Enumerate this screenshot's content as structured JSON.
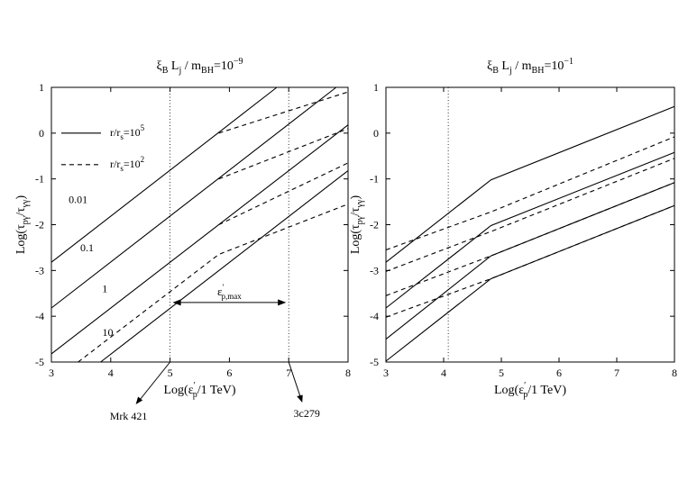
{
  "chart_data": [
    {
      "type": "line",
      "title": "ξ_B L_j / m_BH=10^-9",
      "title_parts": {
        "xi": "ξ",
        "xi_sub": "B",
        "L": "L",
        "L_sub": "j",
        "m": "/ m",
        "m_sub": "BH",
        "eq": "=10",
        "exp": "−9"
      },
      "xlabel": "Log(ε'_p/1 TeV)",
      "ylabel": "Log(τ_pγ/τ_γγ)",
      "xlim": [
        3,
        8
      ],
      "ylim": [
        -5,
        1
      ],
      "xticks": [
        "3",
        "4",
        "5",
        "6",
        "7",
        "8"
      ],
      "yticks": [
        "-5",
        "-4",
        "-3",
        "-2",
        "-1",
        "0",
        "1"
      ],
      "grid": false,
      "legend": {
        "placement": "top-left",
        "entries": [
          {
            "style": "solid",
            "label": "r/r_s=10^5",
            "base": "r/r",
            "sub": "s",
            "eq": "=10",
            "exp": "5"
          },
          {
            "style": "dashed",
            "label": "r/r_s=10^2",
            "base": "r/r",
            "sub": "s",
            "eq": "=10",
            "exp": "2"
          }
        ]
      },
      "series": [
        {
          "label_on_chart": "0.01",
          "style": "solid",
          "points": [
            [
              3,
              -2.82
            ],
            [
              6.8,
              1.0
            ]
          ]
        },
        {
          "label_on_chart": "0.1",
          "style": "solid",
          "points": [
            [
              3,
              -3.82
            ],
            [
              7.8,
              1.0
            ]
          ]
        },
        {
          "label_on_chart": "1",
          "style": "solid",
          "points": [
            [
              3,
              -4.82
            ],
            [
              8,
              0.18
            ]
          ]
        },
        {
          "label_on_chart": "10",
          "style": "solid",
          "points": [
            [
              3.83,
              -5.0
            ],
            [
              8,
              -0.82
            ]
          ]
        },
        {
          "style": "dashed",
          "points": [
            [
              5.82,
              0.0
            ],
            [
              8,
              0.9
            ]
          ]
        },
        {
          "style": "dashed",
          "points": [
            [
              5.82,
              -1.0
            ],
            [
              8,
              0.1
            ]
          ]
        },
        {
          "style": "dashed",
          "points": [
            [
              5.82,
              -2.0
            ],
            [
              8,
              -0.65
            ]
          ]
        },
        {
          "style": "dashed",
          "points": [
            [
              3.45,
              -5.0
            ],
            [
              5.82,
              -2.65
            ],
            [
              8,
              -1.55
            ]
          ]
        }
      ],
      "vlines": [
        5,
        7
      ],
      "annotations": {
        "range_arrow": {
          "from": 5,
          "to": 7,
          "y": -3.7,
          "label": "ε'_p,max",
          "base": "ε",
          "sup": "′",
          "sub": "p,max"
        },
        "left_source": "Mrk 421",
        "right_source": "3c279"
      }
    },
    {
      "type": "line",
      "title": "ξ_B L_j / m_BH=10^-1",
      "title_parts": {
        "xi": "ξ",
        "xi_sub": "B",
        "L": "L",
        "L_sub": "j",
        "m": "/ m",
        "m_sub": "BH",
        "eq": "=10",
        "exp": "−1"
      },
      "xlabel": "Log(ε'_p/1 TeV)",
      "ylabel": "Log(τ_pγ/τ_γγ)",
      "xlim": [
        3,
        8
      ],
      "ylim": [
        -5,
        1
      ],
      "xticks": [
        "3",
        "4",
        "5",
        "6",
        "7",
        "8"
      ],
      "yticks": [
        "-5",
        "-4",
        "-3",
        "-2",
        "-1",
        "0",
        "1"
      ],
      "grid": false,
      "series": [
        {
          "style": "solid",
          "points": [
            [
              3,
              -2.82
            ],
            [
              4.82,
              -1.02
            ],
            [
              8,
              0.58
            ]
          ]
        },
        {
          "style": "solid",
          "points": [
            [
              3,
              -3.82
            ],
            [
              4.82,
              -2.02
            ],
            [
              8,
              -0.42
            ]
          ]
        },
        {
          "style": "solid",
          "points": [
            [
              3,
              -4.5
            ],
            [
              4.82,
              -2.68
            ],
            [
              8,
              -1.08
            ]
          ]
        },
        {
          "style": "solid",
          "points": [
            [
              3,
              -4.98
            ],
            [
              4.82,
              -3.18
            ],
            [
              8,
              -1.58
            ]
          ]
        },
        {
          "style": "dashed",
          "points": [
            [
              3,
              -2.55
            ],
            [
              4.82,
              -1.72
            ],
            [
              8,
              -0.08
            ]
          ]
        },
        {
          "style": "dashed",
          "points": [
            [
              3,
              -3.02
            ],
            [
              4.82,
              -2.15
            ],
            [
              8,
              -0.55
            ]
          ]
        },
        {
          "style": "dashed",
          "points": [
            [
              3,
              -3.55
            ],
            [
              4.82,
              -2.68
            ],
            [
              8,
              -1.08
            ]
          ]
        },
        {
          "style": "dashed",
          "points": [
            [
              3,
              -4.02
            ],
            [
              4.82,
              -3.18
            ],
            [
              8,
              -1.58
            ]
          ]
        }
      ],
      "vlines": [
        4.08
      ]
    }
  ]
}
